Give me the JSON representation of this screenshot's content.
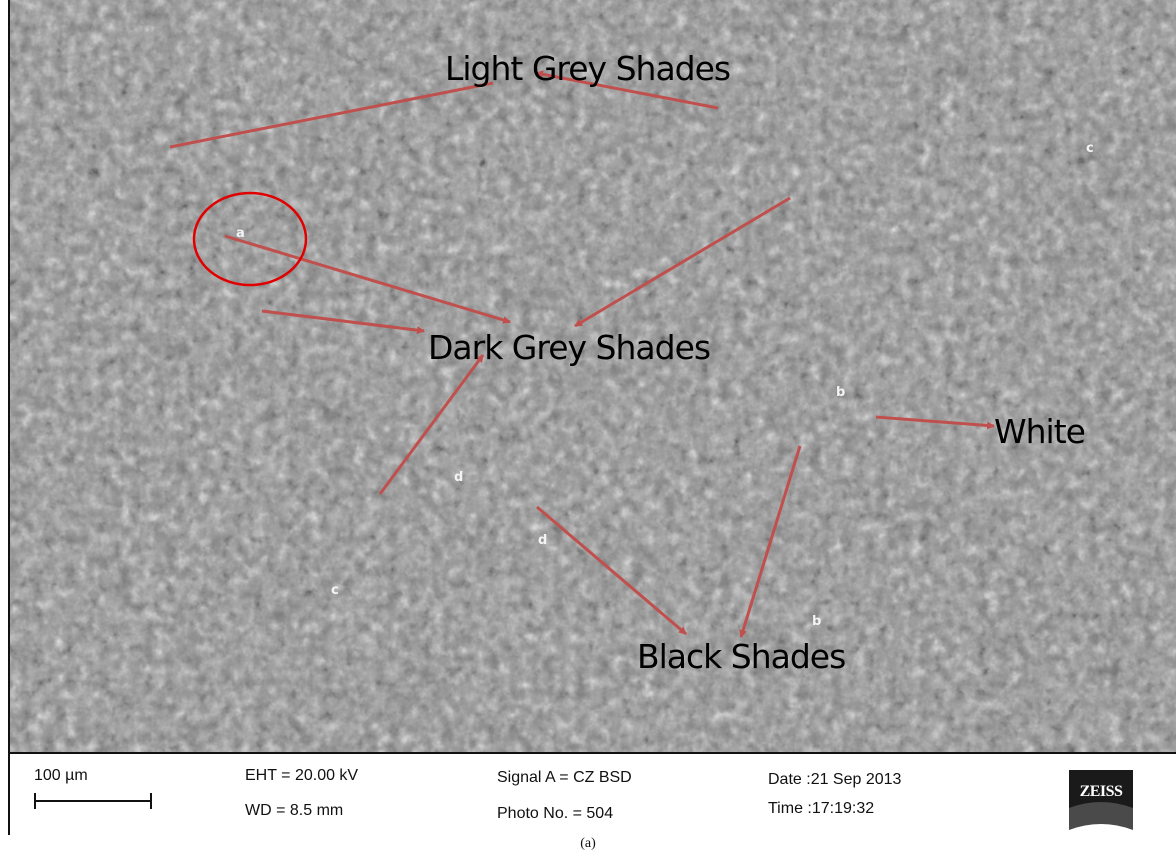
{
  "annotations": {
    "light_grey": "Light Grey Shades",
    "dark_grey": "Dark Grey Shades",
    "white": "White",
    "black": "Black Shades"
  },
  "markers": {
    "a": "a",
    "b": "b",
    "c": "c",
    "d": "d"
  },
  "databar": {
    "scale_label": "100 µm",
    "eht": "EHT = 20.00 kV",
    "wd": "WD =  8.5 mm",
    "signal": "Signal A = CZ BSD",
    "photo": "Photo No. = 504",
    "date": "Date :21 Sep 2013",
    "time": "Time :17:19:32",
    "logo_text": "ZEISS"
  },
  "caption": "(a)",
  "colors": {
    "arrow": "#c0504d",
    "circle": "#e00000"
  }
}
